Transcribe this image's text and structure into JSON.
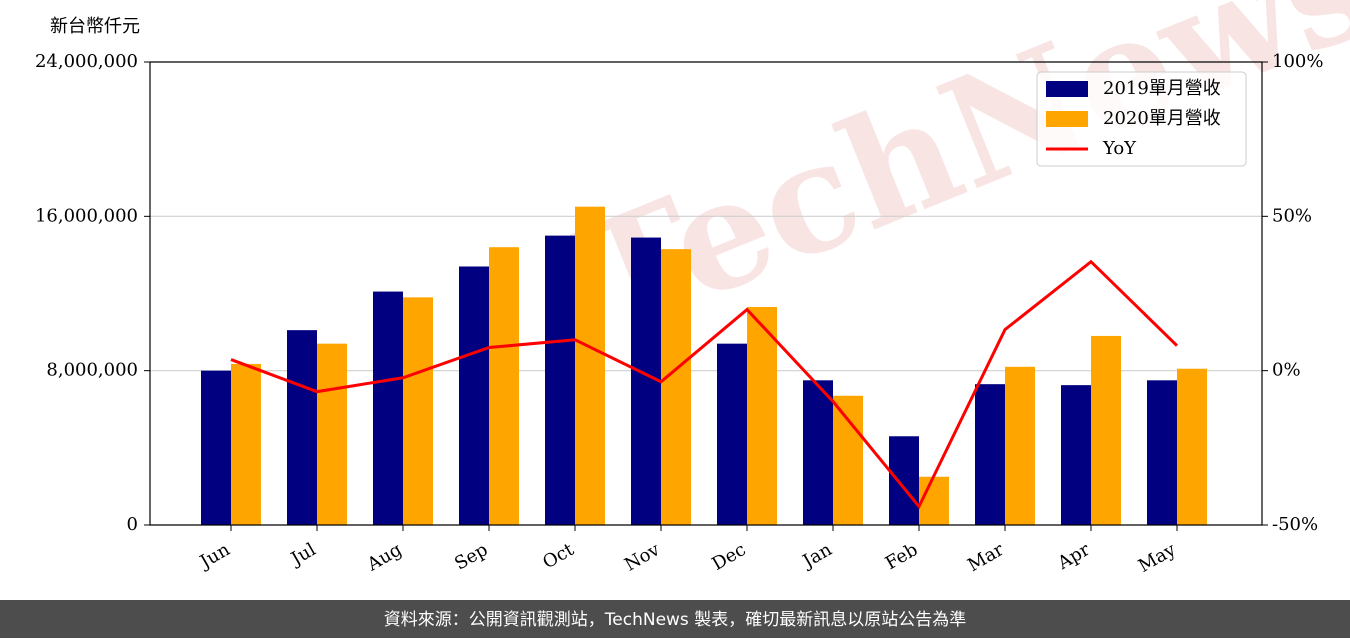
{
  "chart_data": {
    "type": "bar-line",
    "y_label": "新台幣仟元",
    "categories": [
      "Jun",
      "Jul",
      "Aug",
      "Sep",
      "Oct",
      "Nov",
      "Dec",
      "Jan",
      "Feb",
      "Mar",
      "Apr",
      "May"
    ],
    "series": [
      {
        "name": "2019單月營收",
        "type": "bar",
        "color": "#000080",
        "values": [
          8000000,
          10100000,
          12100000,
          13400000,
          15000000,
          14900000,
          9400000,
          7500000,
          4600000,
          7300000,
          7250000,
          7500000
        ]
      },
      {
        "name": "2020單月營收",
        "type": "bar",
        "color": "#ffa500",
        "values": [
          8350000,
          9400000,
          11800000,
          14400000,
          16500000,
          14300000,
          11300000,
          6700000,
          2500000,
          8200000,
          9800000,
          8100000
        ]
      },
      {
        "name": "YoY",
        "type": "line",
        "axis": "y2",
        "color": "#ff0000",
        "values": [
          3.6,
          -6.8,
          -2.3,
          7.5,
          10,
          -3.6,
          19.8,
          -10,
          -44,
          13.3,
          35.3,
          8.1
        ]
      }
    ],
    "ylim": [
      0,
      24000000
    ],
    "yticks": [
      0,
      {
        "value": 8000000,
        "label": "8,000,000"
      },
      {
        "value": 16000000,
        "label": "16,000,000"
      },
      {
        "value": 24000000,
        "label": "24,000,000"
      }
    ],
    "y2lim": [
      -50,
      100
    ],
    "y2ticks": [
      {
        "value": -50,
        "label": "-50%"
      },
      {
        "value": 0,
        "label": "0%"
      },
      {
        "value": 50,
        "label": "50%"
      },
      {
        "value": 100,
        "label": "100%"
      }
    ],
    "grid": true,
    "legend": "upper right"
  },
  "watermark": "TechNews",
  "footer": "資料來源：公開資訊觀測站，TechNews 製表，確切最新訊息以原站公告為準"
}
